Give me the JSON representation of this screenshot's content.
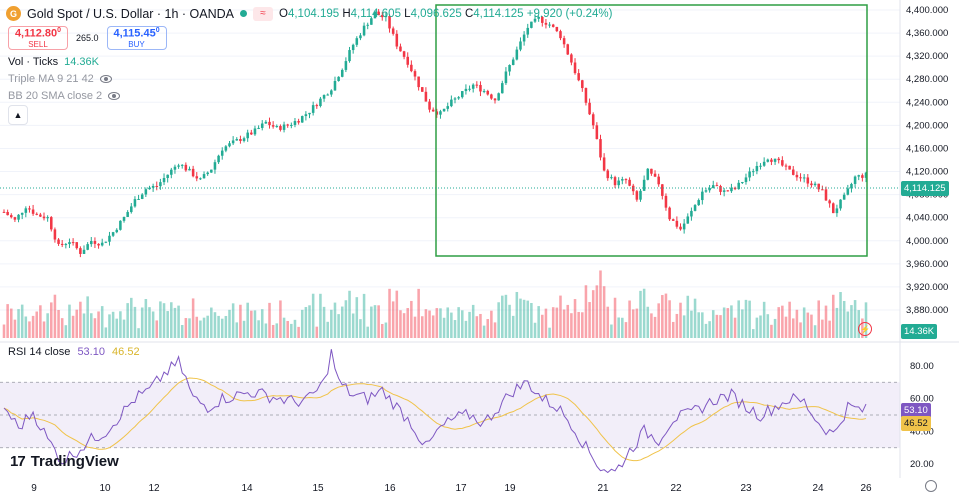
{
  "header": {
    "symbol_icon": "gold-coin-icon",
    "title": "Gold Spot / U.S. Dollar · 1h · OANDA",
    "ohlc": {
      "o_label": "O",
      "o": "4,104.195",
      "h_label": "H",
      "h": "4,114.605",
      "l_label": "L",
      "l": "4,096.625",
      "c_label": "C",
      "c": "4,114.125",
      "change": "+9.920 (+0.24%)"
    }
  },
  "trade": {
    "sell_price": "4,112.80",
    "sell_sup": "0",
    "sell_label": "SELL",
    "spread": "265.0",
    "buy_price": "4,115.45",
    "buy_sup": "0",
    "buy_label": "BUY"
  },
  "indicators": {
    "volume": {
      "name": "Vol · Ticks",
      "value": "14.36K"
    },
    "triple_ma": {
      "name": "Triple MA 9 21 42"
    },
    "bb": {
      "name": "BB 20 SMA close 2"
    },
    "rsi": {
      "name": "RSI 14 close",
      "value1": "53.10",
      "value2": "46.52"
    }
  },
  "price_axis": {
    "ticks": [
      "4,400.000",
      "4,360.000",
      "4,320.000",
      "4,280.000",
      "4,240.000",
      "4,200.000",
      "4,160.000",
      "4,120.000",
      "4,080.000",
      "4,040.000",
      "4,000.000",
      "3,960.000",
      "3,920.000",
      "3,880.000"
    ],
    "last_price_label": "4,114.125",
    "volume_label": "14.36K"
  },
  "rsi_axis": {
    "ticks": [
      "80.00",
      "60.00",
      "40.00",
      "20.00"
    ],
    "rsi_label": "53.10",
    "ma_label": "46.52"
  },
  "time_axis": {
    "labels": [
      "9",
      "10",
      "12",
      "14",
      "15",
      "16",
      "17",
      "19",
      "21",
      "22",
      "23",
      "24",
      "26"
    ]
  },
  "brand": {
    "name": "TradingView"
  },
  "colors": {
    "up": "#22ab94",
    "down": "#f23645",
    "rsi": "#7e57c2",
    "rsi_ma": "#f0c34a",
    "box": "#2e9e44"
  },
  "chart_data": {
    "type": "candlestick",
    "title": "Gold Spot / U.S. Dollar · 1h · OANDA",
    "ylim": [
      3880,
      4400
    ],
    "anchors": [
      [
        0,
        4050
      ],
      [
        3,
        4035
      ],
      [
        6,
        4060
      ],
      [
        9,
        4045
      ],
      [
        12,
        4040
      ],
      [
        15,
        3990
      ],
      [
        18,
        4000
      ],
      [
        21,
        3980
      ],
      [
        24,
        4000
      ],
      [
        27,
        3995
      ],
      [
        30,
        4015
      ],
      [
        33,
        4040
      ],
      [
        36,
        4070
      ],
      [
        39,
        4090
      ],
      [
        42,
        4095
      ],
      [
        45,
        4115
      ],
      [
        48,
        4135
      ],
      [
        51,
        4120
      ],
      [
        54,
        4105
      ],
      [
        57,
        4125
      ],
      [
        60,
        4160
      ],
      [
        63,
        4170
      ],
      [
        66,
        4180
      ],
      [
        69,
        4190
      ],
      [
        72,
        4205
      ],
      [
        75,
        4195
      ],
      [
        78,
        4200
      ],
      [
        81,
        4210
      ],
      [
        84,
        4225
      ],
      [
        87,
        4245
      ],
      [
        90,
        4265
      ],
      [
        93,
        4300
      ],
      [
        96,
        4340
      ],
      [
        99,
        4370
      ],
      [
        102,
        4395
      ],
      [
        105,
        4385
      ],
      [
        108,
        4340
      ],
      [
        111,
        4310
      ],
      [
        114,
        4270
      ],
      [
        117,
        4230
      ],
      [
        120,
        4220
      ],
      [
        123,
        4240
      ],
      [
        126,
        4255
      ],
      [
        129,
        4270
      ],
      [
        132,
        4260
      ],
      [
        135,
        4245
      ],
      [
        138,
        4290
      ],
      [
        141,
        4330
      ],
      [
        144,
        4370
      ],
      [
        147,
        4385
      ],
      [
        150,
        4375
      ],
      [
        153,
        4355
      ],
      [
        156,
        4310
      ],
      [
        159,
        4260
      ],
      [
        162,
        4200
      ],
      [
        165,
        4120
      ],
      [
        168,
        4100
      ],
      [
        171,
        4105
      ],
      [
        174,
        4070
      ],
      [
        177,
        4120
      ],
      [
        180,
        4100
      ],
      [
        183,
        4040
      ],
      [
        186,
        4020
      ],
      [
        189,
        4050
      ],
      [
        192,
        4085
      ],
      [
        195,
        4095
      ],
      [
        198,
        4085
      ],
      [
        201,
        4090
      ],
      [
        204,
        4110
      ],
      [
        207,
        4130
      ],
      [
        210,
        4145
      ],
      [
        213,
        4135
      ],
      [
        216,
        4120
      ],
      [
        219,
        4110
      ],
      [
        222,
        4100
      ],
      [
        225,
        4085
      ],
      [
        228,
        4050
      ],
      [
        231,
        4075
      ],
      [
        234,
        4110
      ],
      [
        237,
        4114
      ]
    ],
    "count": 238,
    "rsi_anchors": [
      [
        0,
        55
      ],
      [
        4,
        42
      ],
      [
        8,
        52
      ],
      [
        12,
        35
      ],
      [
        16,
        22
      ],
      [
        20,
        28
      ],
      [
        24,
        35
      ],
      [
        28,
        40
      ],
      [
        32,
        50
      ],
      [
        36,
        60
      ],
      [
        40,
        65
      ],
      [
        44,
        75
      ],
      [
        48,
        82
      ],
      [
        50,
        72
      ],
      [
        52,
        60
      ],
      [
        56,
        55
      ],
      [
        60,
        60
      ],
      [
        64,
        62
      ],
      [
        68,
        64
      ],
      [
        72,
        62
      ],
      [
        76,
        60
      ],
      [
        80,
        58
      ],
      [
        84,
        60
      ],
      [
        88,
        70
      ],
      [
        90,
        88
      ],
      [
        92,
        70
      ],
      [
        96,
        62
      ],
      [
        100,
        60
      ],
      [
        104,
        65
      ],
      [
        108,
        55
      ],
      [
        112,
        45
      ],
      [
        116,
        30
      ],
      [
        120,
        42
      ],
      [
        124,
        48
      ],
      [
        128,
        50
      ],
      [
        132,
        45
      ],
      [
        136,
        55
      ],
      [
        140,
        65
      ],
      [
        144,
        70
      ],
      [
        148,
        60
      ],
      [
        152,
        55
      ],
      [
        156,
        45
      ],
      [
        160,
        30
      ],
      [
        164,
        18
      ],
      [
        168,
        15
      ],
      [
        172,
        28
      ],
      [
        176,
        40
      ],
      [
        180,
        35
      ],
      [
        184,
        48
      ],
      [
        188,
        50
      ],
      [
        192,
        55
      ],
      [
        196,
        60
      ],
      [
        200,
        62
      ],
      [
        204,
        55
      ],
      [
        208,
        50
      ],
      [
        212,
        55
      ],
      [
        216,
        60
      ],
      [
        220,
        58
      ],
      [
        224,
        45
      ],
      [
        228,
        38
      ],
      [
        232,
        55
      ],
      [
        236,
        53
      ]
    ],
    "rsi_ylim": [
      10,
      90
    ],
    "rsi_bands": [
      30,
      50,
      70
    ]
  }
}
